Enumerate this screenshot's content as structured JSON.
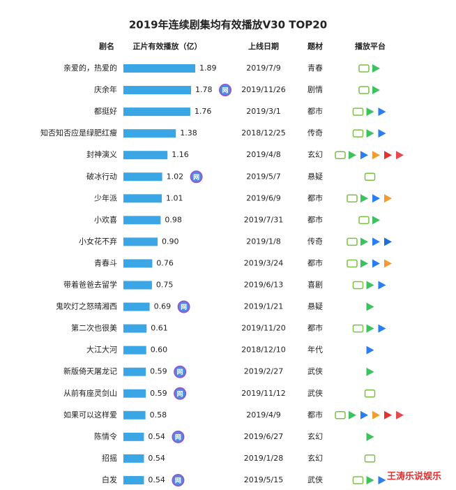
{
  "chart_data": {
    "type": "bar",
    "title": "2019年连续剧集均有效播放V30 TOP20",
    "headers": [
      "剧名",
      "正片有效播放（亿）",
      "上线日期",
      "题材",
      "播放平台"
    ],
    "categories": [
      "亲爱的，热爱的",
      "庆余年",
      "都挺好",
      "知否知否应是绿肥红瘦",
      "封神演义",
      "破冰行动",
      "少年派",
      "小欢喜",
      "小女花不弃",
      "青春斗",
      "带着爸爸去留学",
      "鬼吹灯之怒晴湘西",
      "第二次也很美",
      "大江大河",
      "新版倚天屠龙记",
      "从前有座灵剑山",
      "如果可以这样爱",
      "陈情令",
      "招摇",
      "白发"
    ],
    "values": [
      1.89,
      1.78,
      1.76,
      1.38,
      1.16,
      1.02,
      1.01,
      0.98,
      0.9,
      0.76,
      0.75,
      0.69,
      0.61,
      0.6,
      0.59,
      0.59,
      0.58,
      0.54,
      0.54,
      0.54
    ],
    "value_labels": [
      "1.89",
      "1.78",
      "1.76",
      "1.38",
      "1.16",
      "1.02",
      "1.01",
      "0.98",
      "0.90",
      "0.76",
      "0.75",
      "0.69",
      "0.61",
      "0.60",
      "0.59",
      "0.59",
      "0.58",
      "0.54",
      "0.54",
      "0.54"
    ],
    "color": "#3aa6e6",
    "dates": [
      "2019/7/9",
      "2019/11/26",
      "2019/3/1",
      "2018/12/25",
      "2019/4/8",
      "2019/5/7",
      "2019/6/9",
      "2019/7/31",
      "2019/1/8",
      "2019/3/24",
      "2019/6/13",
      "2019/1/21",
      "2019/11/20",
      "2018/12/10",
      "2019/2/27",
      "2019/11/12",
      "2019/4/9",
      "2019/6/27",
      "2019/1/28",
      "2019/5/15"
    ],
    "genres": [
      "青春",
      "剧情",
      "都市",
      "传奇",
      "玄幻",
      "悬疑",
      "都市",
      "都市",
      "传奇",
      "都市",
      "喜剧",
      "悬疑",
      "都市",
      "年代",
      "武侠",
      "武侠",
      "都市",
      "玄幻",
      "玄幻",
      "武侠"
    ],
    "badge_text": "网",
    "badges": [
      false,
      true,
      false,
      false,
      false,
      true,
      false,
      false,
      false,
      false,
      false,
      true,
      false,
      false,
      true,
      true,
      false,
      true,
      false,
      true
    ],
    "platform_colors": [
      [
        "#7ac143",
        "#3cc35f"
      ],
      [
        "#7ac143",
        "#3cc35f"
      ],
      [
        "#7ac143",
        "#3cc35f",
        "#2a7ef0"
      ],
      [
        "#7ac143",
        "#3cc35f",
        "#2a7ef0"
      ],
      [
        "#7ac143",
        "#3cc35f",
        "#2a7ef0",
        "#f29b30",
        "#e5322d",
        "#e8484f"
      ],
      [
        "#7ac143"
      ],
      [
        "#7ac143",
        "#3cc35f",
        "#2a7ef0",
        "#f29b30"
      ],
      [
        "#7ac143",
        "#3cc35f"
      ],
      [
        "#7ac143",
        "#3cc35f",
        "#2a7ef0",
        "#1a6fd8"
      ],
      [
        "#7ac143",
        "#3cc35f",
        "#2a7ef0",
        "#f29b30"
      ],
      [
        "#7ac143",
        "#3cc35f",
        "#2a7ef0"
      ],
      [
        "#3cc35f"
      ],
      [
        "#7ac143",
        "#3cc35f",
        "#2a7ef0"
      ],
      [
        "#2a7ef0"
      ],
      [
        "#3cc35f"
      ],
      [
        "#7ac143"
      ],
      [
        "#7ac143",
        "#3cc35f",
        "#2a7ef0",
        "#f29b30",
        "#e5322d",
        "#e8484f"
      ],
      [
        "#3cc35f"
      ],
      [
        "#7ac143"
      ],
      [
        "#7ac143",
        "#3cc35f",
        "#2a7ef0"
      ]
    ],
    "credit": "王涛乐说娱乐"
  }
}
